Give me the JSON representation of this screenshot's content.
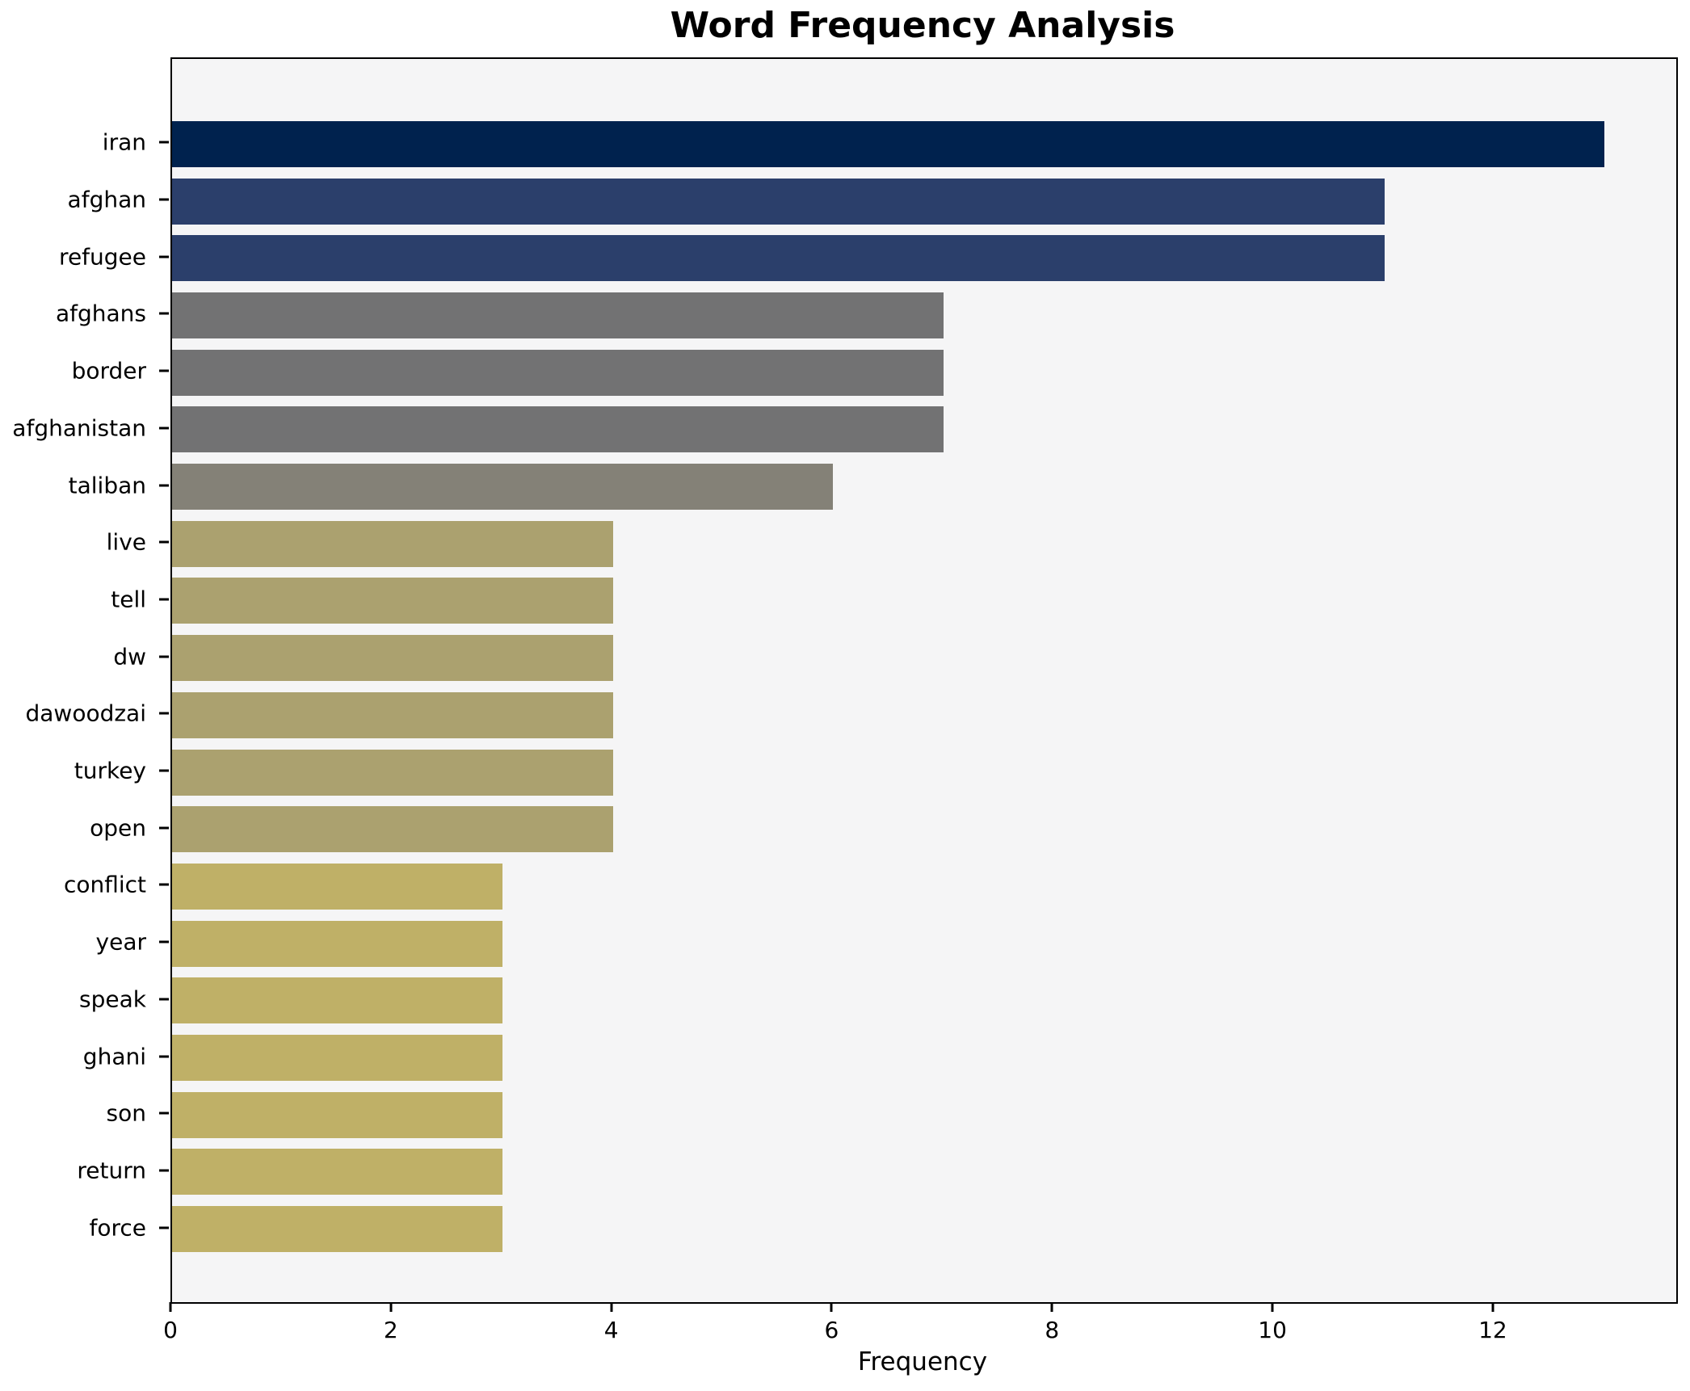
{
  "title": "Word Frequency Analysis",
  "xlabel": "Frequency",
  "colors": {
    "figure_bg": "#ffffff",
    "plot_bg": "#f5f5f6",
    "spine": "#000000",
    "text": "#000000"
  },
  "chart_data": {
    "type": "bar",
    "orientation": "horizontal",
    "title": "Word Frequency Analysis",
    "xlabel": "Frequency",
    "ylabel": "",
    "categories": [
      "iran",
      "afghan",
      "refugee",
      "afghans",
      "border",
      "afghanistan",
      "taliban",
      "live",
      "tell",
      "dw",
      "dawoodzai",
      "turkey",
      "open",
      "conflict",
      "year",
      "speak",
      "ghani",
      "son",
      "return",
      "force"
    ],
    "values": [
      13,
      11,
      11,
      7,
      7,
      7,
      6,
      4,
      4,
      4,
      4,
      4,
      4,
      3,
      3,
      3,
      3,
      3,
      3,
      3
    ],
    "bar_colors": [
      "#00224e",
      "#2b3f6b",
      "#2b3f6b",
      "#727273",
      "#727273",
      "#727273",
      "#848177",
      "#aba16f",
      "#aba16f",
      "#aba16f",
      "#aba16f",
      "#aba16f",
      "#aba16f",
      "#bfb067",
      "#bfb067",
      "#bfb067",
      "#bfb067",
      "#bfb067",
      "#bfb067",
      "#bfb067"
    ],
    "xlim": [
      0,
      13.65
    ],
    "x_ticks": [
      0,
      2,
      4,
      6,
      8,
      10,
      12
    ],
    "grid": false,
    "legend": false,
    "plot_bg": "#f5f5f6"
  }
}
